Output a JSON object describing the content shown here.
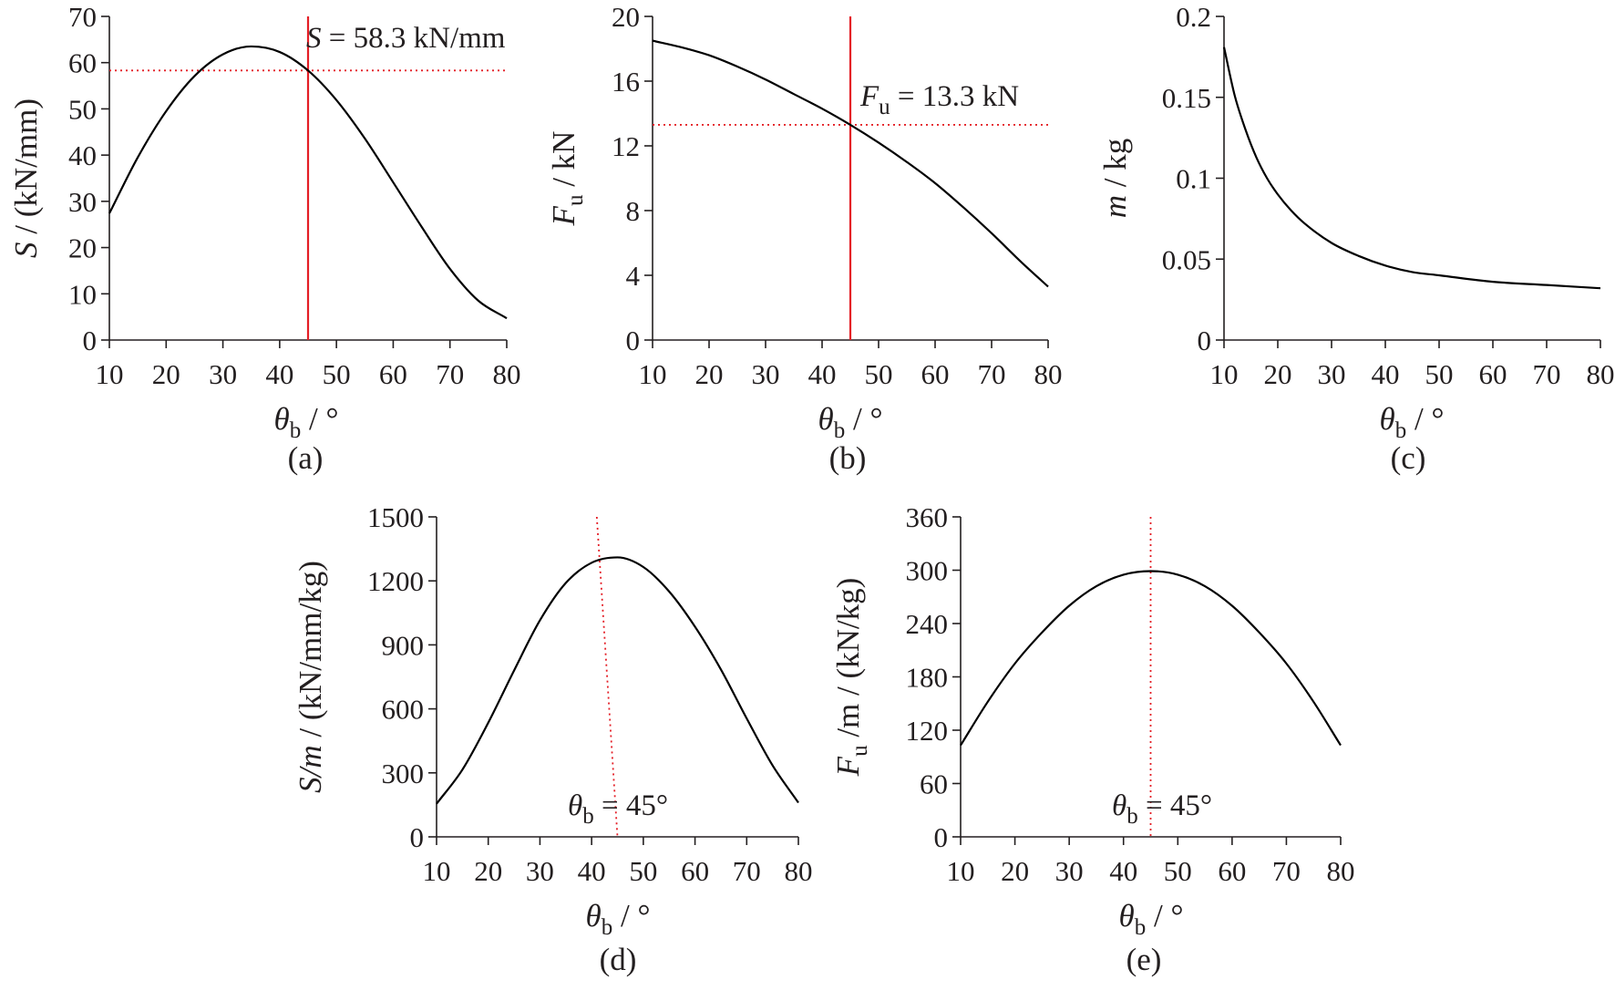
{
  "colors": {
    "curve": "#000000",
    "marker": "#e41e26",
    "axis": "#231f20"
  },
  "chart_data": [
    {
      "id": "a",
      "type": "line",
      "panel_label": "(a)",
      "xlabel": {
        "sym": "θ",
        "sub": "b",
        "unit": " / °"
      },
      "ylabel": {
        "sym": "S",
        "sub": "",
        "unit": " / (kN/mm)"
      },
      "xlim": [
        10,
        80
      ],
      "ylim": [
        0,
        70
      ],
      "xticks": [
        10,
        20,
        30,
        40,
        50,
        60,
        70,
        80
      ],
      "yticks": [
        0,
        10,
        20,
        30,
        40,
        50,
        60,
        70
      ],
      "series": [
        {
          "name": "S",
          "x": [
            10,
            15,
            20,
            25,
            30,
            35,
            40,
            45,
            50,
            55,
            60,
            65,
            70,
            75,
            80
          ],
          "y": [
            27.4,
            39.5,
            49.5,
            57.1,
            61.8,
            63.5,
            62.3,
            58.3,
            51.9,
            43.6,
            34.1,
            24.5,
            15.4,
            8.5,
            4.7
          ]
        }
      ],
      "vline": {
        "x": 45,
        "style": "solid"
      },
      "hline": {
        "y": 58.3,
        "style": "dotted"
      },
      "annotation": {
        "sym": "S",
        "sub": "",
        "text": " = 58.3 kN/mm"
      }
    },
    {
      "id": "b",
      "type": "line",
      "panel_label": "(b)",
      "xlabel": {
        "sym": "θ",
        "sub": "b",
        "unit": " / °"
      },
      "ylabel": {
        "sym": "F",
        "sub": "u",
        "unit": " / kN"
      },
      "xlim": [
        10,
        80
      ],
      "ylim": [
        0,
        20
      ],
      "xticks": [
        10,
        20,
        30,
        40,
        50,
        60,
        70,
        80
      ],
      "yticks": [
        0,
        4,
        8,
        12,
        16,
        20
      ],
      "series": [
        {
          "name": "Fu",
          "x": [
            10,
            15,
            20,
            25,
            30,
            35,
            40,
            45,
            50,
            55,
            60,
            65,
            70,
            75,
            80
          ],
          "y": [
            18.5,
            18.1,
            17.6,
            16.9,
            16.1,
            15.2,
            14.3,
            13.3,
            12.2,
            11.0,
            9.7,
            8.2,
            6.6,
            4.9,
            3.3
          ]
        }
      ],
      "vline": {
        "x": 45,
        "style": "solid"
      },
      "hline": {
        "y": 13.3,
        "style": "dotted"
      },
      "annotation": {
        "sym": "F",
        "sub": "u",
        "text": " = 13.3 kN"
      }
    },
    {
      "id": "c",
      "type": "line",
      "panel_label": "(c)",
      "xlabel": {
        "sym": "θ",
        "sub": "b",
        "unit": " / °"
      },
      "ylabel": {
        "sym": "m",
        "sub": "",
        "unit": " / kg"
      },
      "xlim": [
        10,
        80
      ],
      "ylim": [
        0,
        0.2
      ],
      "xticks": [
        10,
        20,
        30,
        40,
        50,
        60,
        70,
        80
      ],
      "yticks": [
        0,
        0.05,
        0.1,
        0.15,
        0.2
      ],
      "series": [
        {
          "name": "m",
          "x": [
            10,
            12,
            14,
            16,
            18,
            20,
            22.5,
            25,
            30,
            35,
            40,
            45,
            50,
            60,
            70,
            80
          ],
          "y": [
            0.181,
            0.151,
            0.13,
            0.113,
            0.1,
            0.09,
            0.08,
            0.072,
            0.06,
            0.052,
            0.046,
            0.042,
            0.04,
            0.036,
            0.034,
            0.032
          ]
        }
      ]
    },
    {
      "id": "d",
      "type": "line",
      "panel_label": "(d)",
      "xlabel": {
        "sym": "θ",
        "sub": "b",
        "unit": " / °"
      },
      "ylabel": {
        "sym": "S/m",
        "sub": "",
        "unit": " / (kN/mm/kg)"
      },
      "xlim": [
        10,
        80
      ],
      "ylim": [
        0,
        1500
      ],
      "xticks": [
        10,
        20,
        30,
        40,
        50,
        60,
        70,
        80
      ],
      "yticks": [
        0,
        300,
        600,
        900,
        1200,
        1500
      ],
      "series": [
        {
          "name": "S/m",
          "x": [
            10,
            15,
            20,
            25,
            30,
            35,
            40,
            45,
            50,
            55,
            60,
            65,
            70,
            75,
            80
          ],
          "y": [
            155,
            315,
            535,
            780,
            1015,
            1190,
            1285,
            1310,
            1265,
            1150,
            985,
            785,
            555,
            335,
            160
          ]
        }
      ],
      "marker_line": {
        "x": [
          41,
          45
        ],
        "y": [
          1500,
          0
        ],
        "style": "dotted"
      },
      "annotation": {
        "sym": "θ",
        "sub": "b",
        "text": " = 45°"
      }
    },
    {
      "id": "e",
      "type": "line",
      "panel_label": "(e)",
      "xlabel": {
        "sym": "θ",
        "sub": "b",
        "unit": " / °"
      },
      "ylabel": {
        "sym": "F",
        "sub": "u",
        "unit": " /m / (kN/kg)"
      },
      "xlim": [
        10,
        80
      ],
      "ylim": [
        0,
        360
      ],
      "xticks": [
        10,
        20,
        30,
        40,
        50,
        60,
        70,
        80
      ],
      "yticks": [
        0,
        60,
        120,
        180,
        240,
        300,
        360
      ],
      "series": [
        {
          "name": "Fu/m",
          "x": [
            10,
            15,
            20,
            25,
            30,
            35,
            40,
            45,
            50,
            55,
            60,
            65,
            70,
            75,
            80
          ],
          "y": [
            103,
            152,
            195,
            230,
            260,
            282,
            295,
            299,
            295,
            282,
            260,
            230,
            195,
            152,
            103
          ]
        }
      ],
      "marker_line": {
        "x": [
          45,
          45
        ],
        "y": [
          360,
          0
        ],
        "style": "dotted"
      },
      "annotation": {
        "sym": "θ",
        "sub": "b",
        "text": " = 45°"
      }
    }
  ]
}
